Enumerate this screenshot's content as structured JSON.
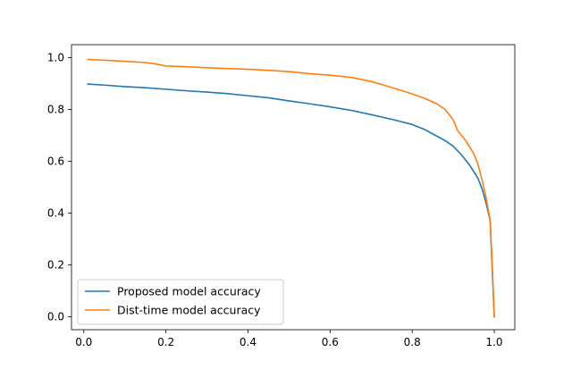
{
  "chart_data": {
    "type": "line",
    "title": "",
    "xlabel": "",
    "ylabel": "",
    "xlim": [
      -0.03,
      1.05
    ],
    "ylim": [
      -0.05,
      1.05
    ],
    "xticks": [
      0.0,
      0.2,
      0.4,
      0.6,
      0.8,
      1.0
    ],
    "xtick_labels": [
      "0.0",
      "0.2",
      "0.4",
      "0.6",
      "0.8",
      "1.0"
    ],
    "yticks": [
      0.0,
      0.2,
      0.4,
      0.6,
      0.8,
      1.0
    ],
    "ytick_labels": [
      "0.0",
      "0.2",
      "0.4",
      "0.6",
      "0.8",
      "1.0"
    ],
    "grid": false,
    "legend_position": "lower-left",
    "series": [
      {
        "name": "Proposed model accuracy",
        "color": "#1f77b4",
        "x": [
          0.01,
          0.05,
          0.1,
          0.15,
          0.2,
          0.25,
          0.3,
          0.35,
          0.4,
          0.45,
          0.5,
          0.55,
          0.6,
          0.65,
          0.7,
          0.75,
          0.8,
          0.83,
          0.86,
          0.88,
          0.9,
          0.92,
          0.94,
          0.96,
          0.97,
          0.98,
          0.99,
          0.995,
          1.0
        ],
        "y": [
          0.898,
          0.894,
          0.888,
          0.884,
          0.878,
          0.872,
          0.867,
          0.861,
          0.853,
          0.845,
          0.833,
          0.822,
          0.81,
          0.797,
          0.78,
          0.762,
          0.742,
          0.723,
          0.697,
          0.68,
          0.658,
          0.625,
          0.585,
          0.535,
          0.495,
          0.44,
          0.37,
          0.18,
          0.0
        ]
      },
      {
        "name": "Dist-time model accuracy",
        "color": "#ff7f0e",
        "x": [
          0.01,
          0.05,
          0.1,
          0.15,
          0.17,
          0.2,
          0.25,
          0.3,
          0.35,
          0.4,
          0.45,
          0.5,
          0.55,
          0.6,
          0.65,
          0.7,
          0.75,
          0.8,
          0.83,
          0.86,
          0.88,
          0.9,
          0.91,
          0.93,
          0.95,
          0.96,
          0.97,
          0.98,
          0.99,
          0.995,
          1.0
        ],
        "y": [
          0.993,
          0.99,
          0.986,
          0.981,
          0.977,
          0.968,
          0.965,
          0.961,
          0.958,
          0.955,
          0.951,
          0.946,
          0.938,
          0.932,
          0.924,
          0.908,
          0.885,
          0.86,
          0.843,
          0.822,
          0.8,
          0.76,
          0.72,
          0.68,
          0.63,
          0.59,
          0.53,
          0.46,
          0.37,
          0.2,
          0.0
        ]
      }
    ]
  }
}
